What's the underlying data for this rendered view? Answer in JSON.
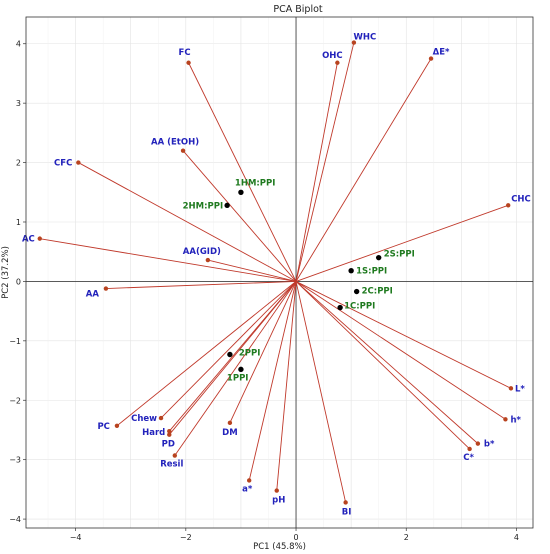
{
  "chart_data": {
    "type": "scatter",
    "title": "PCA Biplot",
    "xlabel": "PC1 (45.8%)",
    "ylabel": "PC2 (37.2%)",
    "xlim": [
      -4.9,
      4.3
    ],
    "ylim": [
      -4.15,
      4.45
    ],
    "xticks": [
      -4,
      -2,
      0,
      2,
      4
    ],
    "yticks": [
      -4,
      -3,
      -2,
      -1,
      0,
      1,
      2,
      3,
      4
    ],
    "grid": true,
    "colors": {
      "vector": "#c0392b",
      "vector_tip": "#b8431f",
      "variable_text": "#2222bb",
      "observation_text": "#1f7a1f",
      "observation_point": "#000000"
    },
    "variables": [
      {
        "label": "FC",
        "x": -1.95,
        "y": 3.68
      },
      {
        "label": "WHC",
        "x": 1.05,
        "y": 4.02
      },
      {
        "label": "OHC",
        "x": 0.75,
        "y": 3.68
      },
      {
        "label": "ΔE*",
        "x": 2.45,
        "y": 3.75
      },
      {
        "label": "AA (EtOH)",
        "x": -2.05,
        "y": 2.2
      },
      {
        "label": "CFC",
        "x": -3.95,
        "y": 2.0
      },
      {
        "label": "CHC",
        "x": 3.85,
        "y": 1.28
      },
      {
        "label": "AC",
        "x": -4.65,
        "y": 0.72
      },
      {
        "label": "AA(GID)",
        "x": -1.6,
        "y": 0.36
      },
      {
        "label": "AA",
        "x": -3.45,
        "y": -0.12
      },
      {
        "label": "L*",
        "x": 3.9,
        "y": -1.8
      },
      {
        "label": "h*",
        "x": 3.8,
        "y": -2.32
      },
      {
        "label": "b*",
        "x": 3.3,
        "y": -2.73
      },
      {
        "label": "C*",
        "x": 3.15,
        "y": -2.82
      },
      {
        "label": "PC",
        "x": -3.25,
        "y": -2.43
      },
      {
        "label": "Chew",
        "x": -2.45,
        "y": -2.3
      },
      {
        "label": "Hard",
        "x": -2.3,
        "y": -2.52
      },
      {
        "label": "PD",
        "x": -2.3,
        "y": -2.58
      },
      {
        "label": "Resil",
        "x": -2.2,
        "y": -2.93
      },
      {
        "label": "DM",
        "x": -1.2,
        "y": -2.38
      },
      {
        "label": "a*",
        "x": -0.85,
        "y": -3.35
      },
      {
        "label": "pH",
        "x": -0.35,
        "y": -3.52
      },
      {
        "label": "BI",
        "x": 0.9,
        "y": -3.72
      }
    ],
    "observations": [
      {
        "label": "1HM:PPI",
        "x": -1.0,
        "y": 1.5
      },
      {
        "label": "2HM:PPI",
        "x": -1.25,
        "y": 1.28
      },
      {
        "label": "2S:PPI",
        "x": 1.5,
        "y": 0.4
      },
      {
        "label": "1S:PPI",
        "x": 1.0,
        "y": 0.18
      },
      {
        "label": "2C:PPI",
        "x": 1.1,
        "y": -0.17
      },
      {
        "label": "1C:PPI",
        "x": 0.8,
        "y": -0.44
      },
      {
        "label": "2PPI",
        "x": -1.2,
        "y": -1.23
      },
      {
        "label": "1PPI",
        "x": -1.0,
        "y": -1.48
      }
    ]
  }
}
